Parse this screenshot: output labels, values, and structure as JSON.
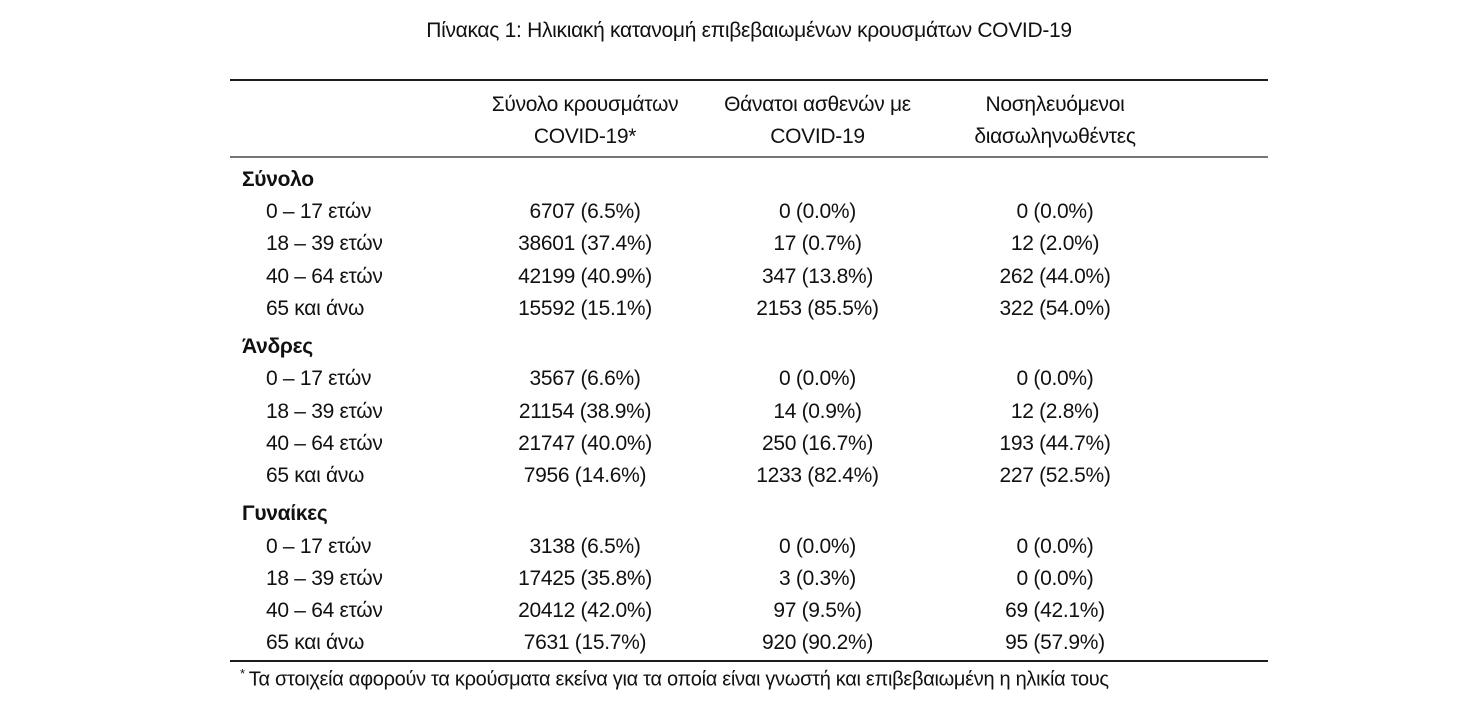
{
  "title": "Πίνακας 1: Ηλικιακή κατανομή επιβεβαιωμένων κρουσμάτων COVID-19",
  "table": {
    "header": {
      "row_label_column": "",
      "columns": [
        {
          "key": "cases",
          "line1": "Σύνολο κρουσμάτων",
          "line2": "COVID-19*"
        },
        {
          "key": "deaths",
          "line1": "Θάνατοι ασθενών με",
          "line2": "COVID-19"
        },
        {
          "key": "intubated",
          "line1": "Νοσηλευόμενοι",
          "line2": "διασωληνωθέντες"
        }
      ]
    },
    "groups": [
      {
        "label": "Σύνολο",
        "rows": [
          {
            "label": "0 – 17 ετών",
            "values": [
              "6707 (6.5%)",
              "0 (0.0%)",
              "0 (0.0%)"
            ]
          },
          {
            "label": "18 – 39 ετών",
            "values": [
              "38601 (37.4%)",
              "17 (0.7%)",
              "12 (2.0%)"
            ]
          },
          {
            "label": "40 – 64 ετών",
            "values": [
              "42199 (40.9%)",
              "347 (13.8%)",
              "262 (44.0%)"
            ]
          },
          {
            "label": "65 και άνω",
            "values": [
              "15592 (15.1%)",
              "2153 (85.5%)",
              "322 (54.0%)"
            ]
          }
        ]
      },
      {
        "label": "Άνδρες",
        "rows": [
          {
            "label": "0 – 17 ετών",
            "values": [
              "3567 (6.6%)",
              "0 (0.0%)",
              "0 (0.0%)"
            ]
          },
          {
            "label": "18 – 39 ετών",
            "values": [
              "21154 (38.9%)",
              "14 (0.9%)",
              "12 (2.8%)"
            ]
          },
          {
            "label": "40 – 64 ετών",
            "values": [
              "21747 (40.0%)",
              "250 (16.7%)",
              "193 (44.7%)"
            ]
          },
          {
            "label": "65 και άνω",
            "values": [
              "7956 (14.6%)",
              "1233 (82.4%)",
              "227 (52.5%)"
            ]
          }
        ]
      },
      {
        "label": "Γυναίκες",
        "rows": [
          {
            "label": "0 – 17 ετών",
            "values": [
              "3138 (6.5%)",
              "0 (0.0%)",
              "0 (0.0%)"
            ]
          },
          {
            "label": "18 – 39 ετών",
            "values": [
              "17425 (35.8%)",
              "3 (0.3%)",
              "0 (0.0%)"
            ]
          },
          {
            "label": "40 – 64 ετών",
            "values": [
              "20412 (42.0%)",
              "97 (9.5%)",
              "69 (42.1%)"
            ]
          },
          {
            "label": "65 και άνω",
            "values": [
              "7631 (15.7%)",
              "920 (90.2%)",
              "95 (57.9%)"
            ]
          }
        ]
      }
    ]
  },
  "footnote": {
    "marker": "*",
    "text": "Τα στοιχεία αφορούν τα κρούσματα εκείνα για τα οποία είναι γνωστή και επιβεβαιωμένη η ηλικία τους"
  },
  "colors": {
    "background": "#ffffff",
    "text": "#111111",
    "rule_dark": "#1c1c1c",
    "rule_gray": "#767676"
  }
}
